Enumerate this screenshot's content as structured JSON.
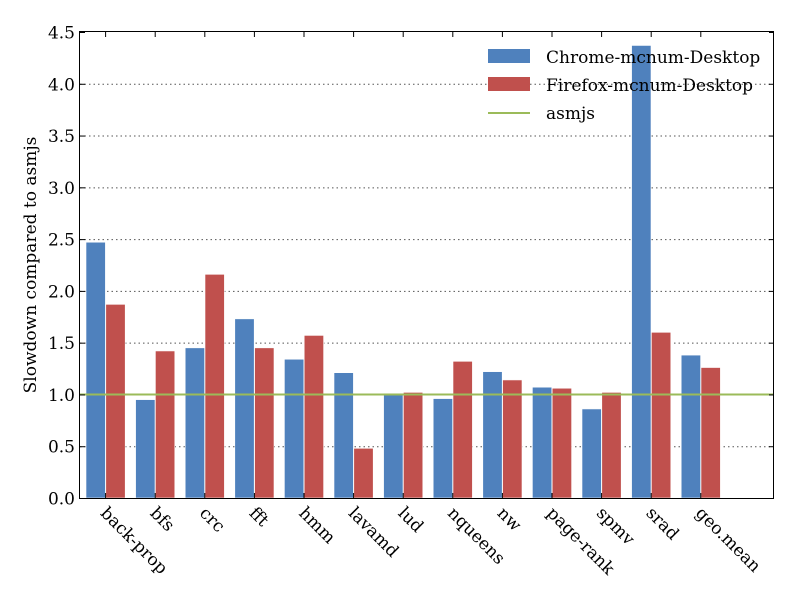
{
  "chart_data": {
    "type": "bar",
    "title": "",
    "xlabel": "",
    "ylabel": "Slowdown compared to asmjs",
    "ylim": [
      0,
      4.5
    ],
    "yticks": [
      "0.0",
      "0.5",
      "1.0",
      "1.5",
      "2.0",
      "2.5",
      "3.0",
      "3.5",
      "4.0",
      "4.5"
    ],
    "grid": "horizontal dotted",
    "legend_position": "top-right",
    "categories": [
      "back-prop",
      "bfs",
      "crc",
      "fft",
      "hmm",
      "lavamd",
      "lud",
      "nqueens",
      "nw",
      "page-rank",
      "spmv",
      "srad",
      "geo.mean"
    ],
    "series": [
      {
        "name": "Chrome-mcnum-Desktop",
        "color": "#4f81bd",
        "values": [
          2.47,
          0.95,
          1.45,
          1.73,
          1.34,
          1.21,
          1.01,
          0.96,
          1.22,
          1.07,
          0.86,
          4.37,
          1.38
        ]
      },
      {
        "name": "Firefox-mcnum-Desktop",
        "color": "#c0504d",
        "values": [
          1.87,
          1.42,
          2.16,
          1.45,
          1.57,
          0.48,
          1.02,
          1.32,
          1.14,
          1.06,
          1.02,
          1.6,
          1.26
        ]
      }
    ],
    "reference_line": {
      "name": "asmjs",
      "color": "#9bbb59",
      "value": 1.0
    }
  }
}
